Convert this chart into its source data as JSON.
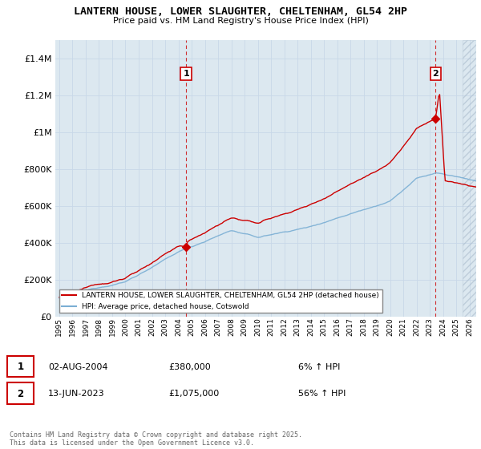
{
  "title": "LANTERN HOUSE, LOWER SLAUGHTER, CHELTENHAM, GL54 2HP",
  "subtitle": "Price paid vs. HM Land Registry's House Price Index (HPI)",
  "ylim": [
    0,
    1500000
  ],
  "yticks": [
    0,
    200000,
    400000,
    600000,
    800000,
    1000000,
    1200000,
    1400000
  ],
  "xlim_min": 1994.7,
  "xlim_max": 2026.5,
  "sale1_x": 2004.58,
  "sale1_y": 380000,
  "sale1_label": "1",
  "sale1_date": "02-AUG-2004",
  "sale1_price": "£380,000",
  "sale1_hpi": "6% ↑ HPI",
  "sale2_x": 2023.44,
  "sale2_y": 1075000,
  "sale2_label": "2",
  "sale2_date": "13-JUN-2023",
  "sale2_price": "£1,075,000",
  "sale2_hpi": "56% ↑ HPI",
  "legend_red": "LANTERN HOUSE, LOWER SLAUGHTER, CHELTENHAM, GL54 2HP (detached house)",
  "legend_blue": "HPI: Average price, detached house, Cotswold",
  "footnote": "Contains HM Land Registry data © Crown copyright and database right 2025.\nThis data is licensed under the Open Government Licence v3.0.",
  "hpi_color": "#7bafd4",
  "price_color": "#cc0000",
  "vline_color": "#cc0000",
  "grid_color": "#c8d8e8",
  "plot_bg_color": "#dce8f0",
  "fig_bg_color": "#ffffff"
}
